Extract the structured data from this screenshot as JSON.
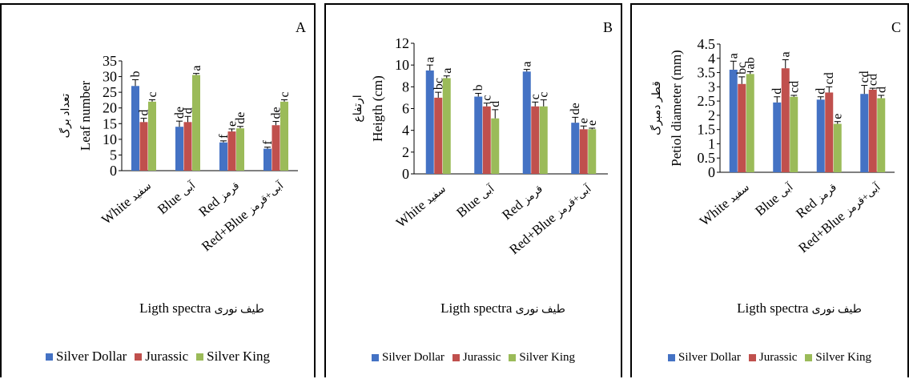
{
  "chart_data": [
    {
      "type": "bar",
      "panel_letter": "A",
      "ylabel_en": "Leaf number",
      "ylabel_fa": "تعداد برگ",
      "xlabel_en": "Ligth spectra",
      "xlabel_fa": "طیف نوری",
      "ylim": [
        0,
        35
      ],
      "yticks": [
        0,
        5,
        10,
        15,
        20,
        25,
        30,
        35
      ],
      "categories": [
        {
          "en": "White",
          "fa": "سفید"
        },
        {
          "en": "Blue",
          "fa": "آبی"
        },
        {
          "en": "Red",
          "fa": "قرمز"
        },
        {
          "en": "Red+Blue",
          "fa": "آبی+قرمز"
        }
      ],
      "series": [
        {
          "name": "Silver Dollar",
          "color": "#4472C4",
          "values": [
            27,
            14,
            9,
            7
          ],
          "errors": [
            2,
            1.8,
            0.5,
            0.5
          ],
          "letters": [
            "b",
            "de",
            "f",
            "f"
          ]
        },
        {
          "name": "Jurassic",
          "color": "#C0504D",
          "values": [
            15.5,
            15.5,
            12.5,
            14.5
          ],
          "errors": [
            1.2,
            1.8,
            0.8,
            1.2
          ],
          "letters": [
            "d",
            "d",
            "e",
            "de"
          ]
        },
        {
          "name": "Silver King",
          "color": "#9BBB59",
          "values": [
            22,
            30.5,
            13.5,
            22
          ],
          "errors": [
            0.6,
            0.5,
            0.6,
            0.6
          ],
          "letters": [
            "c",
            "a",
            "de",
            "c"
          ]
        }
      ],
      "grid": false,
      "legend_position": "bottom"
    },
    {
      "type": "bar",
      "panel_letter": "B",
      "ylabel_en": "Heigth (cm)",
      "ylabel_fa": "ارتفاع",
      "xlabel_en": "Ligth spectra",
      "xlabel_fa": "طیف نوری",
      "ylim": [
        0,
        12
      ],
      "yticks": [
        0,
        2,
        4,
        6,
        8,
        10,
        12
      ],
      "categories": [
        {
          "en": "White",
          "fa": "سفید"
        },
        {
          "en": "Blue",
          "fa": "آبی"
        },
        {
          "en": "Red",
          "fa": "قرمز"
        },
        {
          "en": "Red+Blue",
          "fa": "آبی+قرمز"
        }
      ],
      "series": [
        {
          "name": "Silver Dollar",
          "color": "#4472C4",
          "values": [
            9.5,
            7.1,
            9.4,
            4.7
          ],
          "errors": [
            0.5,
            0.3,
            0.2,
            0.5
          ],
          "letters": [
            "a",
            "b",
            "a",
            "de"
          ]
        },
        {
          "name": "Jurassic",
          "color": "#C0504D",
          "values": [
            7.0,
            6.2,
            6.2,
            4.1
          ],
          "errors": [
            0.5,
            0.3,
            0.4,
            0.3
          ],
          "letters": [
            "bc",
            "c",
            "c",
            "e"
          ]
        },
        {
          "name": "Silver King",
          "color": "#9BBB59",
          "values": [
            8.8,
            5.1,
            6.2,
            4.1
          ],
          "errors": [
            0.2,
            0.8,
            0.6,
            0.1
          ],
          "letters": [
            "a",
            "d",
            "c",
            "e"
          ]
        }
      ],
      "grid": false,
      "legend_position": "bottom"
    },
    {
      "type": "bar",
      "panel_letter": "C",
      "ylabel_en": "Petiol diameter (mm)",
      "ylabel_fa": "قطر دمبرگ",
      "xlabel_en": "Ligth spectra",
      "xlabel_fa": "طیف نوری",
      "ylim": [
        0,
        4.5
      ],
      "yticks": [
        0,
        0.5,
        1,
        1.5,
        2,
        2.5,
        3,
        3.5,
        4,
        4.5
      ],
      "categories": [
        {
          "en": "White",
          "fa": "سفید"
        },
        {
          "en": "Blue",
          "fa": "آبی"
        },
        {
          "en": "Red",
          "fa": "قرمز"
        },
        {
          "en": "Red+Blue",
          "fa": "آبی+قرمز"
        }
      ],
      "series": [
        {
          "name": "Silver Dollar",
          "color": "#4472C4",
          "values": [
            3.6,
            2.45,
            2.55,
            2.75
          ],
          "errors": [
            0.3,
            0.2,
            0.1,
            0.3
          ],
          "letters": [
            "a",
            "d",
            "d",
            "cd"
          ]
        },
        {
          "name": "Jurassic",
          "color": "#C0504D",
          "values": [
            3.1,
            3.65,
            2.8,
            2.9
          ],
          "errors": [
            0.25,
            0.3,
            0.2,
            0.05
          ],
          "letters": [
            "bc",
            "a",
            "cd",
            "cd"
          ]
        },
        {
          "name": "Silver King",
          "color": "#9BBB59",
          "values": [
            3.45,
            2.65,
            1.7,
            2.6
          ],
          "errors": [
            0.08,
            0.05,
            0.08,
            0.1
          ],
          "letters": [
            "ab",
            "cd",
            "e",
            "d"
          ]
        }
      ],
      "grid": false,
      "legend_position": "bottom"
    }
  ]
}
